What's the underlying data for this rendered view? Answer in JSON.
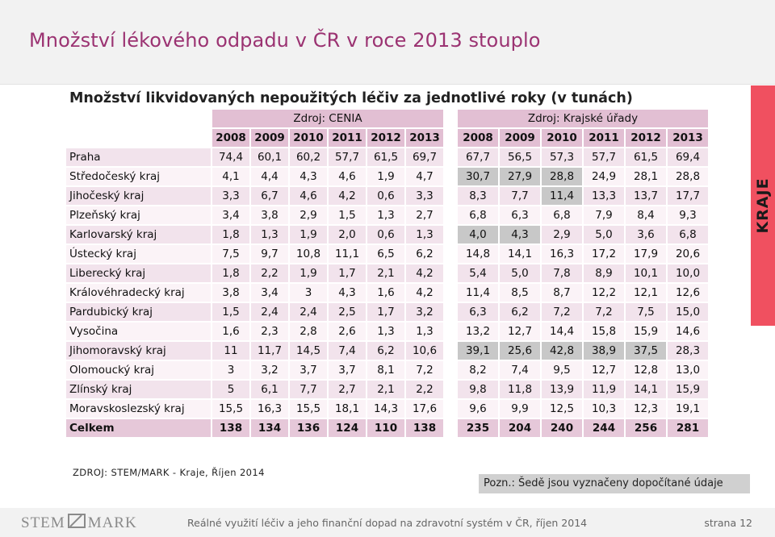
{
  "title": "Množství lékového odpadu v ČR v roce 2013 stouplo",
  "subtitle": "Množství likvidovaných nepoužitých léčiv za jednotlivé roky (v tunách)",
  "source_left": "Zdroj: CENIA",
  "source_right": "Zdroj: Krajské úřady",
  "years_left": [
    "2008",
    "2009",
    "2010",
    "2011",
    "2012",
    "2013"
  ],
  "years_right": [
    "2008",
    "2009",
    "2010",
    "2011",
    "2012",
    "2013"
  ],
  "rows": [
    {
      "name": "Praha",
      "cenia": [
        "74,4",
        "60,1",
        "60,2",
        "57,7",
        "61,5",
        "69,7"
      ],
      "kraje": [
        "67,7",
        "56,5",
        "57,3",
        "57,7",
        "61,5",
        "69,4"
      ],
      "grey": []
    },
    {
      "name": "Středočeský kraj",
      "cenia": [
        "4,1",
        "4,4",
        "4,3",
        "4,6",
        "1,9",
        "4,7"
      ],
      "kraje": [
        "30,7",
        "27,9",
        "28,8",
        "24,9",
        "28,1",
        "28,8"
      ],
      "grey": [
        0,
        1,
        2
      ]
    },
    {
      "name": "Jihočeský kraj",
      "cenia": [
        "3,3",
        "6,7",
        "4,6",
        "4,2",
        "0,6",
        "3,3"
      ],
      "kraje": [
        "8,3",
        "7,7",
        "11,4",
        "13,3",
        "13,7",
        "17,7"
      ],
      "grey": [
        2
      ]
    },
    {
      "name": "Plzeňský kraj",
      "cenia": [
        "3,4",
        "3,8",
        "2,9",
        "1,5",
        "1,3",
        "2,7"
      ],
      "kraje": [
        "6,8",
        "6,3",
        "6,8",
        "7,9",
        "8,4",
        "9,3"
      ],
      "grey": []
    },
    {
      "name": "Karlovarský kraj",
      "cenia": [
        "1,8",
        "1,3",
        "1,9",
        "2,0",
        "0,6",
        "1,3"
      ],
      "kraje": [
        "4,0",
        "4,3",
        "2,9",
        "5,0",
        "3,6",
        "6,8"
      ],
      "grey": [
        0,
        1
      ]
    },
    {
      "name": "Ústecký kraj",
      "cenia": [
        "7,5",
        "9,7",
        "10,8",
        "11,1",
        "6,5",
        "6,2"
      ],
      "kraje": [
        "14,8",
        "14,1",
        "16,3",
        "17,2",
        "17,9",
        "20,6"
      ],
      "grey": []
    },
    {
      "name": "Liberecký kraj",
      "cenia": [
        "1,8",
        "2,2",
        "1,9",
        "1,7",
        "2,1",
        "4,2"
      ],
      "kraje": [
        "5,4",
        "5,0",
        "7,8",
        "8,9",
        "10,1",
        "10,0"
      ],
      "grey": []
    },
    {
      "name": "Královéhradecký kraj",
      "cenia": [
        "3,8",
        "3,4",
        "3",
        "4,3",
        "1,6",
        "4,2"
      ],
      "kraje": [
        "11,4",
        "8,5",
        "8,7",
        "12,2",
        "12,1",
        "12,6"
      ],
      "grey": []
    },
    {
      "name": "Pardubický kraj",
      "cenia": [
        "1,5",
        "2,4",
        "2,4",
        "2,5",
        "1,7",
        "3,2"
      ],
      "kraje": [
        "6,3",
        "6,2",
        "7,2",
        "7,2",
        "7,5",
        "15,0"
      ],
      "grey": []
    },
    {
      "name": "Vysočina",
      "cenia": [
        "1,6",
        "2,3",
        "2,8",
        "2,6",
        "1,3",
        "1,3"
      ],
      "kraje": [
        "13,2",
        "12,7",
        "14,4",
        "15,8",
        "15,9",
        "14,6"
      ],
      "grey": []
    },
    {
      "name": "Jihomoravský kraj",
      "cenia": [
        "11",
        "11,7",
        "14,5",
        "7,4",
        "6,2",
        "10,6"
      ],
      "kraje": [
        "39,1",
        "25,6",
        "42,8",
        "38,9",
        "37,5",
        "28,3"
      ],
      "grey": [
        0,
        1,
        2,
        3,
        4
      ]
    },
    {
      "name": "Olomoucký kraj",
      "cenia": [
        "3",
        "3,2",
        "3,7",
        "3,7",
        "8,1",
        "7,2"
      ],
      "kraje": [
        "8,2",
        "7,4",
        "9,5",
        "12,7",
        "12,8",
        "13,0"
      ],
      "grey": []
    },
    {
      "name": "Zlínský kraj",
      "cenia": [
        "5",
        "6,1",
        "7,7",
        "2,7",
        "2,1",
        "2,2"
      ],
      "kraje": [
        "9,8",
        "11,8",
        "13,9",
        "11,9",
        "14,1",
        "15,9"
      ],
      "grey": []
    },
    {
      "name": "Moravskoslezský kraj",
      "cenia": [
        "15,5",
        "16,3",
        "15,5",
        "18,1",
        "14,3",
        "17,6"
      ],
      "kraje": [
        "9,6",
        "9,9",
        "12,5",
        "10,3",
        "12,3",
        "19,1"
      ],
      "grey": []
    }
  ],
  "total": {
    "name": "Celkem",
    "cenia": [
      "138",
      "134",
      "136",
      "124",
      "110",
      "138"
    ],
    "kraje": [
      "235",
      "204",
      "240",
      "244",
      "256",
      "281"
    ]
  },
  "source_note": "ZDROJ: STEM/MARK - Kraje, Říjen 2014",
  "pozn": "Pozn.: Šedě jsou vyznačeny dopočítané údaje",
  "side_tab": "KRAJE",
  "footer": {
    "logo_left": "STEM",
    "logo_right": "MARK",
    "text": "Reálné využití léčiv a jeho finanční dopad na zdravotní systém v ČR, říjen 2014",
    "page": "strana 12"
  },
  "colors": {
    "title": "#9b3372",
    "header_cell": "#e2bfd3",
    "row_dark": "#f2e3ec",
    "row_light": "#fbf3f7",
    "grey_cell": "#c8c8c8",
    "side_tab": "#f05060"
  }
}
